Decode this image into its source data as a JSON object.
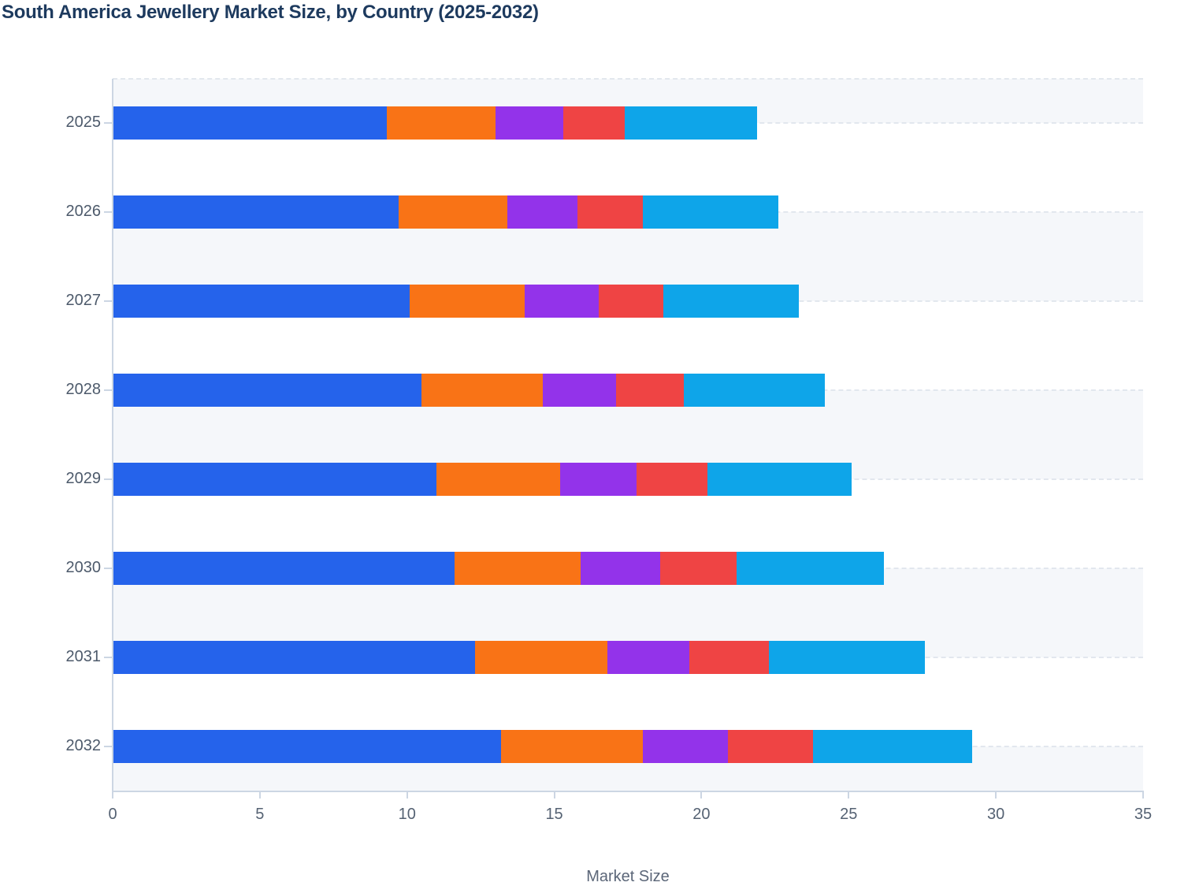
{
  "title": "South America Jewellery Market Size, by Country (2025-2032)",
  "colors": {
    "title_text": "#1d3a5e",
    "axis_label": "#556273",
    "axis_line": "#ccd6e3",
    "stripe_gray": "#f5f7fa",
    "stripe_white": "#ffffff",
    "gridline": "#e2e7ee",
    "series": [
      "#2563eb",
      "#f97316",
      "#9333ea",
      "#ef4444",
      "#0ea5e9"
    ]
  },
  "chart_data": {
    "type": "bar",
    "orientation": "horizontal",
    "stacked": true,
    "title": "South America Jewellery Market Size, by Country (2025-2032)",
    "xlabel": "Market Size",
    "ylabel": "",
    "xlim": [
      0,
      35
    ],
    "xticks": [
      0,
      5,
      10,
      15,
      20,
      25,
      30,
      35
    ],
    "grid": "dashed horizontal lines at category centers, alternating background bands",
    "legend_visible": false,
    "categories": [
      "2025",
      "2026",
      "2027",
      "2028",
      "2029",
      "2030",
      "2031",
      "2032"
    ],
    "series": [
      {
        "name": "segment-1-blue",
        "color": "#2563eb",
        "values": [
          9.3,
          9.7,
          10.1,
          10.5,
          11.0,
          11.6,
          12.3,
          13.2
        ]
      },
      {
        "name": "segment-2-orange",
        "color": "#f97316",
        "values": [
          3.7,
          3.7,
          3.9,
          4.1,
          4.2,
          4.3,
          4.5,
          4.8
        ]
      },
      {
        "name": "segment-3-purple",
        "color": "#9333ea",
        "values": [
          2.3,
          2.4,
          2.5,
          2.5,
          2.6,
          2.7,
          2.8,
          2.9
        ]
      },
      {
        "name": "segment-4-red",
        "color": "#ef4444",
        "values": [
          2.1,
          2.2,
          2.2,
          2.3,
          2.4,
          2.6,
          2.7,
          2.9
        ]
      },
      {
        "name": "segment-5-cyan",
        "color": "#0ea5e9",
        "values": [
          4.5,
          4.6,
          4.6,
          4.8,
          4.9,
          5.0,
          5.3,
          5.4
        ]
      }
    ],
    "totals": [
      21.9,
      22.6,
      23.3,
      24.2,
      25.1,
      26.2,
      27.6,
      29.2
    ]
  }
}
